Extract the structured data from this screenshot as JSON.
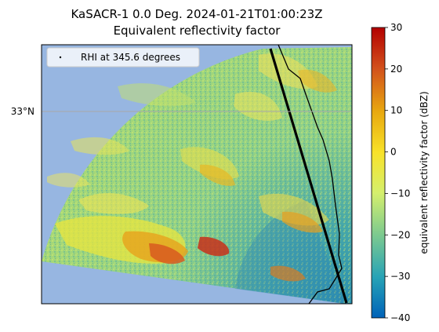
{
  "title": {
    "line1": "KaSACR-1 0.0 Deg. 2024-01-21T01:00:23Z",
    "line2": "Equivalent reflectivity factor"
  },
  "map": {
    "latitude_label": "33°N",
    "background_color": "#97b6e1",
    "gridline_color": "#a8a8a8"
  },
  "legend": {
    "label": "RHI at 345.6 degrees",
    "marker_color": "#000000"
  },
  "colorbar": {
    "label": "equivalent reflectivity factor (dBZ)",
    "min": -40,
    "max": 30,
    "ticks": [
      "30",
      "20",
      "10",
      "0",
      "−10",
      "−20",
      "−30",
      "−40"
    ],
    "colors": [
      "#0062b8",
      "#27a3b6",
      "#7fcb8e",
      "#d5ef6d",
      "#f8e229",
      "#e8a80f",
      "#d2501c",
      "#b30000"
    ]
  }
}
